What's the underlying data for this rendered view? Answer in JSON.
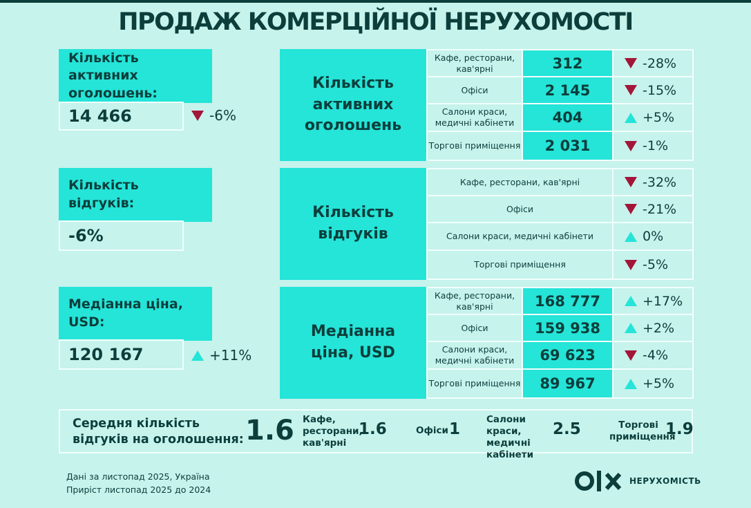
{
  "title": "ПРОДАЖ КОМЕРЦІЙНОЇ НЕРУХОМОСТІ",
  "colors": {
    "background": "#c6f3ec",
    "accent": "#25e4d8",
    "dark": "#0c3e3b",
    "down": "#a31638",
    "panel": "#f2fffd"
  },
  "summary": [
    {
      "label": "Кількість активних оголошень:",
      "value": "14 466",
      "change": "-6%",
      "direction": "down"
    },
    {
      "label": "Кількість відгуків:",
      "value": "-6%"
    },
    {
      "label": "Медіанна ціна, USD:",
      "value": "120 167",
      "change": "+11%",
      "direction": "up"
    }
  ],
  "panels": {
    "listings": {
      "heading": "Кількість активних оголошень",
      "rows": [
        {
          "category": "Кафе, ресторани, кав'ярні",
          "value": "312",
          "change": "-28%",
          "direction": "down"
        },
        {
          "category": "Офіси",
          "value": "2 145",
          "change": "-15%",
          "direction": "down"
        },
        {
          "category": "Салони краси, медичні кабінети",
          "value": "404",
          "change": "+5%",
          "direction": "up"
        },
        {
          "category": "Торгові приміщення",
          "value": "2 031",
          "change": "-1%",
          "direction": "down"
        }
      ]
    },
    "responses": {
      "heading": "Кількість відгуків",
      "rows": [
        {
          "category": "Кафе, ресторани, кав'ярні",
          "change": "-32%",
          "direction": "down"
        },
        {
          "category": "Офіси",
          "change": "-21%",
          "direction": "down"
        },
        {
          "category": "Салони краси, медичні кабінети",
          "change": "0%",
          "direction": "up"
        },
        {
          "category": "Торгові приміщення",
          "change": "-5%",
          "direction": "down"
        }
      ]
    },
    "price": {
      "heading": "Медіанна ціна, USD",
      "rows": [
        {
          "category": "Кафе, ресторани, кав'ярні",
          "value": "168 777",
          "change": "+17%",
          "direction": "up"
        },
        {
          "category": "Офіси",
          "value": "159 938",
          "change": "+2%",
          "direction": "up"
        },
        {
          "category": "Салони краси, медичні кабінети",
          "value": "69 623",
          "change": "-4%",
          "direction": "down"
        },
        {
          "category": "Торгові приміщення",
          "value": "89 967",
          "change": "+5%",
          "direction": "up"
        }
      ]
    }
  },
  "avg_responses": {
    "label": "Середня кількість відгуків на оголошення:",
    "value": "1.6",
    "items": [
      {
        "category": "Кафе, ресторани, кав'ярні",
        "value": "1.6"
      },
      {
        "category": "Офіси",
        "value": "1"
      },
      {
        "category": "Салони краси, медичні кабінети",
        "value": "2.5"
      },
      {
        "category": "Торгові приміщення",
        "value": "1.9"
      }
    ]
  },
  "footer": {
    "line1": "Дані за листопад 2025, Україна",
    "line2": "Приріст листопад 2025 до 2024"
  },
  "logo": {
    "mark": "OLX",
    "text": "НЕРУХОМІСТЬ"
  }
}
